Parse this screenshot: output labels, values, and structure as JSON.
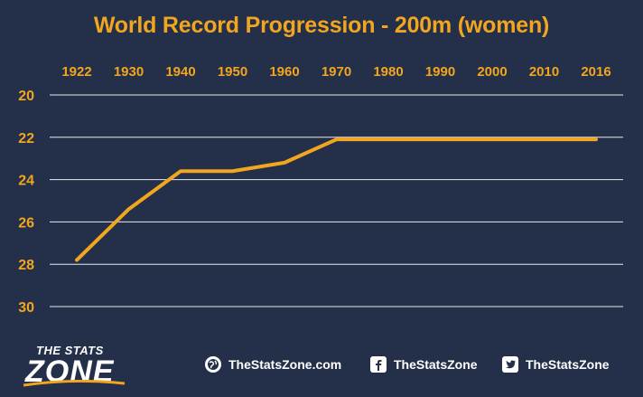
{
  "title": "World Record Progression - 200m (women)",
  "colors": {
    "background": "#243049",
    "line": "#f2a51f",
    "tick_labels": "#f2a51f",
    "grid": "#e6e8ee"
  },
  "chart_data": {
    "type": "line",
    "title": "World Record Progression - 200m (women)",
    "xlabel": "",
    "ylabel": "",
    "x_ticks": [
      "1922",
      "1930",
      "1940",
      "1950",
      "1960",
      "1970",
      "1980",
      "1990",
      "2000",
      "2010",
      "2016"
    ],
    "y_ticks": [
      20,
      22,
      24,
      26,
      28,
      30
    ],
    "ylim": [
      20,
      30
    ],
    "y_inverted": true,
    "grid": true,
    "legend": "none",
    "series": [
      {
        "x": [
          "1922",
          "1930",
          "1940",
          "1950",
          "1960",
          "1970",
          "1980",
          "1990",
          "2000",
          "2010",
          "2016"
        ],
        "values": [
          27.8,
          25.4,
          23.6,
          23.6,
          23.2,
          22.1,
          22.1,
          22.1,
          22.1,
          22.1,
          22.1
        ]
      }
    ]
  },
  "footer": {
    "logo_top": "THE STATS",
    "logo_main": "ZONE",
    "social": [
      {
        "icon": "globe-icon",
        "label": "TheStatsZone.com"
      },
      {
        "icon": "facebook-icon",
        "label": "TheStatsZone"
      },
      {
        "icon": "twitter-icon",
        "label": "TheStatsZone"
      }
    ]
  }
}
